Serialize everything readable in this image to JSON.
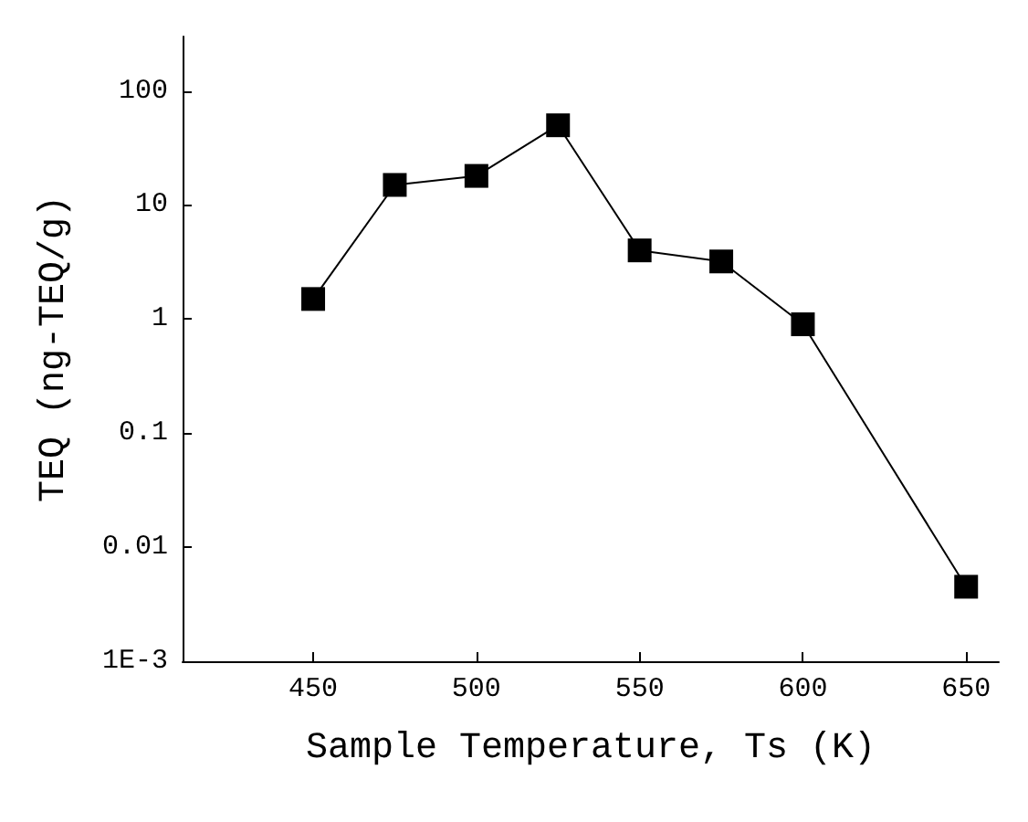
{
  "chart_data": {
    "type": "line",
    "xlabel": "Sample Temperature, Ts (K)",
    "ylabel": "TEQ (ng-TEQ/g)",
    "x": [
      450,
      475,
      500,
      525,
      550,
      575,
      600,
      650
    ],
    "series": [
      {
        "color": "#000000",
        "values": [
          1.5,
          15,
          18,
          50,
          4,
          3.2,
          0.9,
          0.0045
        ]
      }
    ],
    "xlim": [
      410,
      660
    ],
    "xticks": [
      450,
      500,
      550,
      600,
      650
    ],
    "ylim": [
      0.001,
      300
    ],
    "yticks": [
      {
        "value": 0.001,
        "label": "1E-3"
      },
      0.01,
      0.1,
      1,
      10,
      100
    ],
    "log": "y",
    "grid": false,
    "marker": "square",
    "line_style": "solid"
  }
}
